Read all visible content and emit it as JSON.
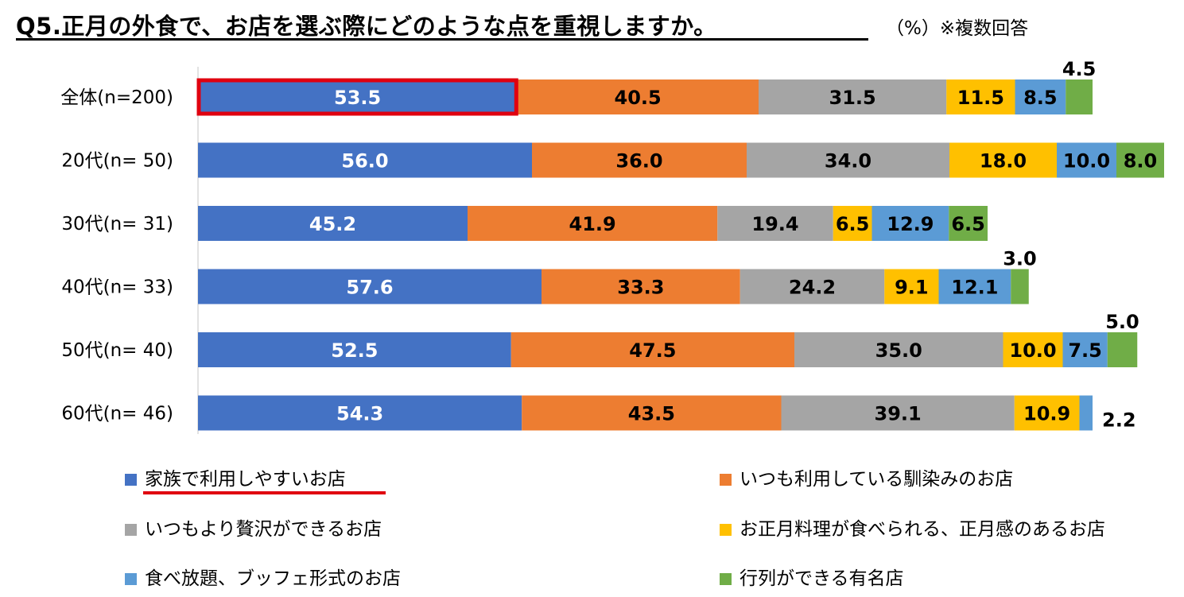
{
  "header": {
    "title": "Q5.正月の外食で、お店を選ぶ際にどのような点を重視しますか。",
    "note": "（%）※複数回答"
  },
  "colors": {
    "blue": "#4472c4",
    "orange": "#ed7d31",
    "gray": "#a5a5a5",
    "yellow": "#ffc000",
    "lightblue": "#5b9bd5",
    "green": "#70ad47",
    "highlight": "#e0000f"
  },
  "chart_data": {
    "type": "bar",
    "orientation": "horizontal",
    "stacked": true,
    "categories": [
      "全体(n=200)",
      "20代(n= 50)",
      "30代(n= 31)",
      "40代(n= 33)",
      "50代(n= 40)",
      "60代(n= 46)"
    ],
    "series": [
      {
        "name": "家族で利用しやすいお店",
        "color": "#4472c4",
        "label_color": "#ffffff",
        "values": [
          53.5,
          56.0,
          45.2,
          57.6,
          52.5,
          54.3
        ]
      },
      {
        "name": "いつも利用している馴染みのお店",
        "color": "#ed7d31",
        "label_color": "#000000",
        "values": [
          40.5,
          36.0,
          41.9,
          33.3,
          47.5,
          43.5
        ]
      },
      {
        "name": "いつもより贅沢ができるお店",
        "color": "#a5a5a5",
        "label_color": "#000000",
        "values": [
          31.5,
          34.0,
          19.4,
          24.2,
          35.0,
          39.1
        ]
      },
      {
        "name": "お正月料理が食べられる、正月感のあるお店",
        "color": "#ffc000",
        "label_color": "#000000",
        "values": [
          11.5,
          18.0,
          6.5,
          9.1,
          10.0,
          10.9
        ]
      },
      {
        "name": "食べ放題、ブッフェ形式のお店",
        "color": "#5b9bd5",
        "label_color": "#000000",
        "values": [
          8.5,
          10.0,
          12.9,
          12.1,
          7.5,
          2.2
        ]
      },
      {
        "name": "行列ができる有名店",
        "color": "#70ad47",
        "label_color": "#000000",
        "values": [
          4.5,
          8.0,
          6.5,
          3.0,
          5.0,
          0
        ]
      }
    ],
    "data_labels": [
      [
        "53.5",
        "40.5",
        "31.5",
        "11.5",
        "8.5",
        "4.5"
      ],
      [
        "56.0",
        "36.0",
        "34.0",
        "18.0",
        "10.0",
        "8.0"
      ],
      [
        "45.2",
        "41.9",
        "19.4",
        "6.5",
        "12.9",
        "6.5"
      ],
      [
        "57.6",
        "33.3",
        "24.2",
        "9.1",
        "12.1",
        "3.0"
      ],
      [
        "52.5",
        "47.5",
        "35.0",
        "10.0",
        "7.5",
        "5.0"
      ],
      [
        "54.3",
        "43.5",
        "39.1",
        "10.9",
        "2.2",
        ""
      ]
    ],
    "xlim": [
      0,
      162
    ],
    "grid": false,
    "legend_position": "bottom",
    "highlight": {
      "category_index": 0,
      "series_index": 0
    }
  }
}
